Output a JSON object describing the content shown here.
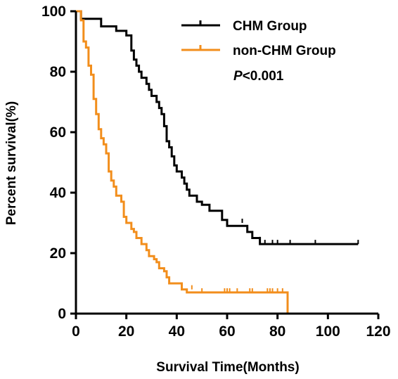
{
  "chart_data": {
    "type": "line",
    "subtype": "kaplan-meier",
    "xlabel": "Survival Time(Months)",
    "ylabel": "Percent survival(%)",
    "xlim": [
      0,
      120
    ],
    "ylim": [
      0,
      100
    ],
    "xticks": [
      "0",
      "20",
      "40",
      "60",
      "80",
      "100",
      "120"
    ],
    "yticks": [
      "0",
      "20",
      "40",
      "60",
      "80",
      "100"
    ],
    "grid": false,
    "legend_position": "top-right",
    "annotation": {
      "italic": "P",
      "rest": "<0.001"
    },
    "series": [
      {
        "name": "CHM Group",
        "color": "#000000",
        "points": [
          [
            0,
            100
          ],
          [
            2,
            100
          ],
          [
            2,
            97.5
          ],
          [
            10,
            97.5
          ],
          [
            10,
            95
          ],
          [
            16,
            95
          ],
          [
            16,
            93.5
          ],
          [
            20,
            93.5
          ],
          [
            20,
            92
          ],
          [
            22,
            92
          ],
          [
            22,
            87
          ],
          [
            23,
            87
          ],
          [
            23,
            84
          ],
          [
            24,
            84
          ],
          [
            24,
            82
          ],
          [
            25,
            82
          ],
          [
            25,
            80
          ],
          [
            26,
            80
          ],
          [
            26,
            78
          ],
          [
            28,
            78
          ],
          [
            28,
            76
          ],
          [
            29,
            76
          ],
          [
            29,
            74
          ],
          [
            30,
            74
          ],
          [
            30,
            72
          ],
          [
            32,
            72
          ],
          [
            32,
            70
          ],
          [
            33,
            70
          ],
          [
            33,
            68
          ],
          [
            34,
            68
          ],
          [
            34,
            66
          ],
          [
            35,
            66
          ],
          [
            35,
            62
          ],
          [
            36,
            62
          ],
          [
            36,
            57
          ],
          [
            37,
            57
          ],
          [
            37,
            55
          ],
          [
            38,
            55
          ],
          [
            38,
            52
          ],
          [
            39,
            52
          ],
          [
            39,
            49
          ],
          [
            40,
            49
          ],
          [
            40,
            47
          ],
          [
            42,
            47
          ],
          [
            42,
            45
          ],
          [
            43,
            45
          ],
          [
            43,
            43
          ],
          [
            44,
            43
          ],
          [
            44,
            41
          ],
          [
            45,
            41
          ],
          [
            45,
            39
          ],
          [
            48,
            39
          ],
          [
            48,
            37
          ],
          [
            50,
            37
          ],
          [
            50,
            36
          ],
          [
            53,
            36
          ],
          [
            53,
            34
          ],
          [
            58,
            34
          ],
          [
            58,
            31
          ],
          [
            60,
            31
          ],
          [
            60,
            29
          ],
          [
            68,
            29
          ],
          [
            68,
            27
          ],
          [
            70,
            27
          ],
          [
            70,
            25
          ],
          [
            73,
            25
          ],
          [
            73,
            23
          ],
          [
            112,
            23
          ]
        ],
        "censored": [
          [
            66,
            30
          ],
          [
            73,
            24
          ],
          [
            75,
            23
          ],
          [
            78,
            23
          ],
          [
            80,
            23
          ],
          [
            85,
            23
          ],
          [
            95,
            23
          ],
          [
            112,
            23
          ]
        ]
      },
      {
        "name": "non-CHM Group",
        "color": "#F28E1C",
        "points": [
          [
            0,
            100
          ],
          [
            2,
            100
          ],
          [
            2,
            97
          ],
          [
            3,
            97
          ],
          [
            3,
            90
          ],
          [
            4,
            90
          ],
          [
            4,
            88
          ],
          [
            5,
            88
          ],
          [
            5,
            82
          ],
          [
            6,
            82
          ],
          [
            6,
            79
          ],
          [
            7,
            79
          ],
          [
            7,
            71
          ],
          [
            8,
            71
          ],
          [
            8,
            66
          ],
          [
            9,
            66
          ],
          [
            9,
            61
          ],
          [
            10,
            61
          ],
          [
            10,
            58
          ],
          [
            11,
            58
          ],
          [
            11,
            56
          ],
          [
            12,
            56
          ],
          [
            12,
            53
          ],
          [
            13,
            53
          ],
          [
            13,
            47
          ],
          [
            14,
            47
          ],
          [
            14,
            44
          ],
          [
            15,
            44
          ],
          [
            15,
            42
          ],
          [
            16,
            42
          ],
          [
            16,
            39
          ],
          [
            18,
            39
          ],
          [
            18,
            37
          ],
          [
            19,
            37
          ],
          [
            19,
            32
          ],
          [
            20,
            32
          ],
          [
            20,
            30
          ],
          [
            22,
            30
          ],
          [
            22,
            28
          ],
          [
            23,
            28
          ],
          [
            23,
            27
          ],
          [
            24,
            27
          ],
          [
            24,
            25
          ],
          [
            26,
            25
          ],
          [
            26,
            23
          ],
          [
            28,
            23
          ],
          [
            28,
            21
          ],
          [
            29,
            21
          ],
          [
            29,
            19
          ],
          [
            31,
            19
          ],
          [
            31,
            18
          ],
          [
            32,
            18
          ],
          [
            32,
            17
          ],
          [
            33,
            17
          ],
          [
            33,
            15
          ],
          [
            35,
            15
          ],
          [
            35,
            14
          ],
          [
            36,
            14
          ],
          [
            36,
            12
          ],
          [
            37,
            12
          ],
          [
            37,
            10
          ],
          [
            42,
            10
          ],
          [
            42,
            8
          ],
          [
            44,
            8
          ],
          [
            44,
            7
          ],
          [
            84,
            7
          ],
          [
            84,
            0
          ]
        ],
        "censored": [
          [
            46,
            8
          ],
          [
            50,
            7
          ],
          [
            59,
            7
          ],
          [
            60,
            7
          ],
          [
            61,
            7
          ],
          [
            64,
            7
          ],
          [
            69,
            7
          ],
          [
            70,
            7
          ],
          [
            76,
            7
          ],
          [
            77,
            7
          ],
          [
            78,
            7
          ],
          [
            80,
            7
          ],
          [
            82,
            7
          ]
        ]
      }
    ]
  }
}
